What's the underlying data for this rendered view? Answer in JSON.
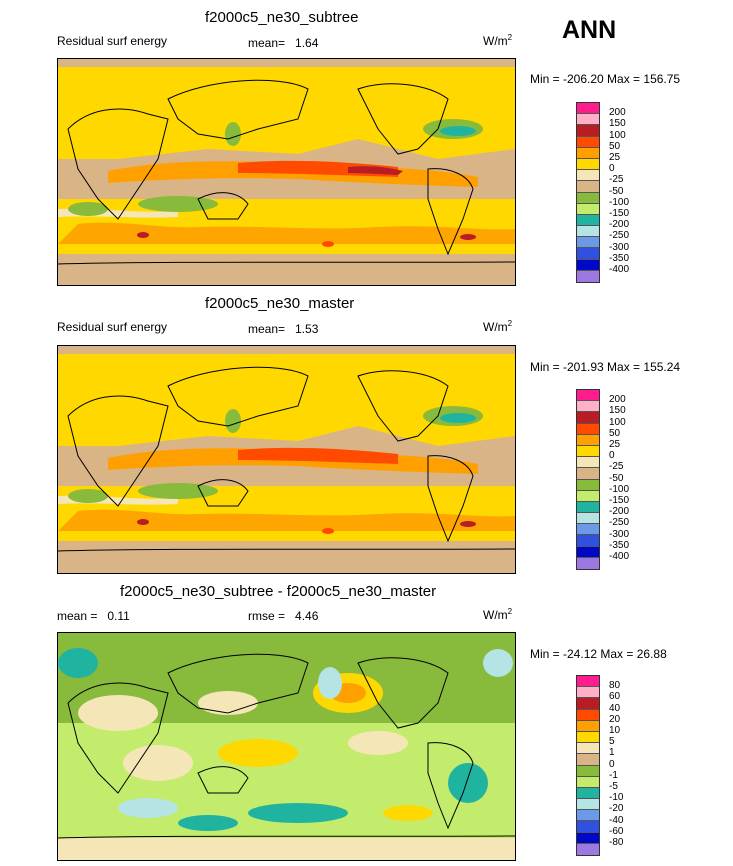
{
  "season": "ANN",
  "panels": [
    {
      "title": "f2000c5_ne30_subtree",
      "variable": "Residual surf energy",
      "stat_label": "mean=",
      "stat_value": "1.64",
      "units": "W/m",
      "units_exp": "2",
      "minmax": "Min = -206.20 Max = 156.75",
      "levels": [
        "200",
        "150",
        "100",
        "50",
        "25",
        "0",
        "-25",
        "-50",
        "-100",
        "-150",
        "-200",
        "-250",
        "-300",
        "-350",
        "-400"
      ],
      "colors": [
        "#ff1c8c",
        "#ffb0c8",
        "#b81c24",
        "#ff4a00",
        "#ffa000",
        "#ffd800",
        "#f5e6b8",
        "#d9b486",
        "#88bb3c",
        "#c4ec6c",
        "#20b4a0",
        "#b4e4e4",
        "#6a9ae8",
        "#3050e0",
        "#0008c8",
        "#9c78e0"
      ]
    },
    {
      "title": "f2000c5_ne30_master",
      "variable": "Residual surf energy",
      "stat_label": "mean=",
      "stat_value": "1.53",
      "units": "W/m",
      "units_exp": "2",
      "minmax": "Min = -201.93 Max = 155.24",
      "levels": [
        "200",
        "150",
        "100",
        "50",
        "25",
        "0",
        "-25",
        "-50",
        "-100",
        "-150",
        "-200",
        "-250",
        "-300",
        "-350",
        "-400"
      ],
      "colors": [
        "#ff1c8c",
        "#ffb0c8",
        "#b81c24",
        "#ff4a00",
        "#ffa000",
        "#ffd800",
        "#f5e6b8",
        "#d9b486",
        "#88bb3c",
        "#c4ec6c",
        "#20b4a0",
        "#b4e4e4",
        "#6a9ae8",
        "#3050e0",
        "#0008c8",
        "#9c78e0"
      ]
    },
    {
      "title": "f2000c5_ne30_subtree - f2000c5_ne30_master",
      "mean_label": "mean =",
      "mean_value": "0.11",
      "stat_label": "rmse =",
      "stat_value": "4.46",
      "units": "W/m",
      "units_exp": "2",
      "minmax": "Min = -24.12 Max =  26.88",
      "levels": [
        "80",
        "60",
        "40",
        "20",
        "10",
        "5",
        "1",
        "0",
        "-1",
        "-5",
        "-10",
        "-20",
        "-40",
        "-60",
        "-80"
      ],
      "colors": [
        "#ff1c8c",
        "#ffb0c8",
        "#b81c24",
        "#ff4a00",
        "#ffa000",
        "#ffd800",
        "#f5e6b8",
        "#d9b486",
        "#88bb3c",
        "#c4ec6c",
        "#20b4a0",
        "#b4e4e4",
        "#6a9ae8",
        "#3050e0",
        "#0008c8",
        "#9c78e0"
      ]
    }
  ],
  "chart_data": [
    {
      "type": "heatmap",
      "title": "f2000c5_ne30_subtree",
      "variable": "Residual surf energy",
      "mean": 1.64,
      "min": -206.2,
      "max": 156.75,
      "units": "W/m2",
      "levels": [
        200,
        150,
        100,
        50,
        25,
        0,
        -25,
        -50,
        -100,
        -150,
        -200,
        -250,
        -300,
        -350,
        -400
      ]
    },
    {
      "type": "heatmap",
      "title": "f2000c5_ne30_master",
      "variable": "Residual surf energy",
      "mean": 1.53,
      "min": -201.93,
      "max": 155.24,
      "units": "W/m2",
      "levels": [
        200,
        150,
        100,
        50,
        25,
        0,
        -25,
        -50,
        -100,
        -150,
        -200,
        -250,
        -300,
        -350,
        -400
      ]
    },
    {
      "type": "heatmap",
      "title": "f2000c5_ne30_subtree - f2000c5_ne30_master",
      "mean": 0.11,
      "rmse": 4.46,
      "min": -24.12,
      "max": 26.88,
      "units": "W/m2",
      "levels": [
        80,
        60,
        40,
        20,
        10,
        5,
        1,
        0,
        -1,
        -5,
        -10,
        -20,
        -40,
        -60,
        -80
      ]
    }
  ]
}
